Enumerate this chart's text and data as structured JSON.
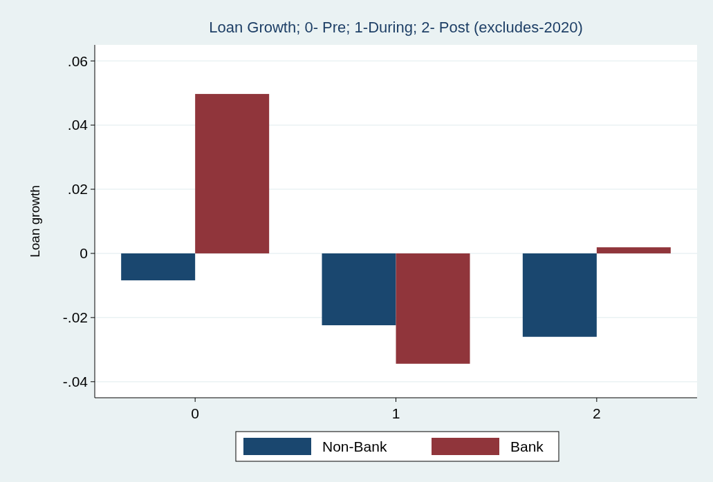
{
  "chart_data": {
    "type": "bar",
    "title": "Loan Growth; 0- Pre; 1-During; 2- Post (excludes-2020)",
    "ylabel": "Loan growth",
    "categories": [
      "0",
      "1",
      "2"
    ],
    "series": [
      {
        "name": "Non-Bank",
        "color": "#1a476f",
        "values": [
          -0.0084,
          -0.0224,
          -0.026
        ]
      },
      {
        "name": "Bank",
        "color": "#90353b",
        "values": [
          0.0497,
          -0.0344,
          0.0019
        ]
      }
    ],
    "ylim": [
      -0.045,
      0.065
    ],
    "yticks": [
      {
        "value": -0.04,
        "label": "-.04"
      },
      {
        "value": -0.02,
        "label": "-.02"
      },
      0,
      {
        "value": 0.02,
        "label": ".02"
      },
      {
        "value": 0.04,
        "label": ".04"
      },
      {
        "value": 0.06,
        "label": ".06"
      }
    ],
    "grid": "y",
    "legend": "bottom"
  }
}
